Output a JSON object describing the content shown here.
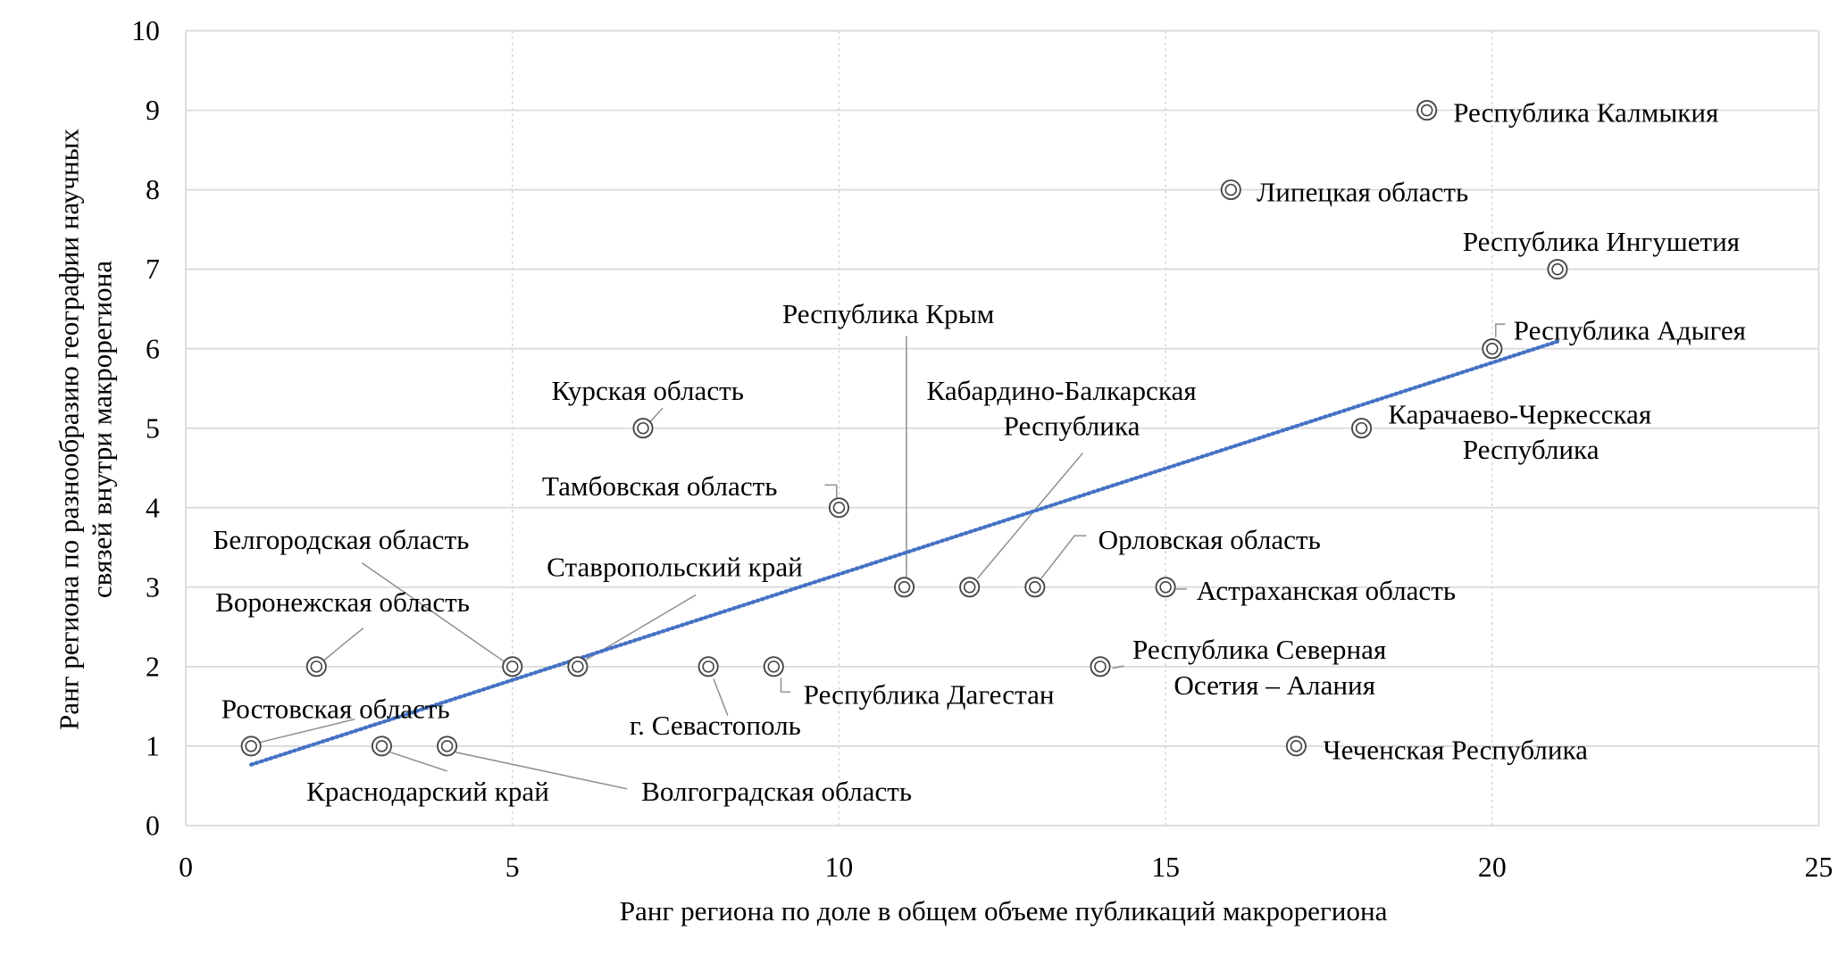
{
  "chart_data": {
    "type": "scatter",
    "title": "",
    "xlabel": "Ранг региона по доле в общем объеме публикаций макрорегиона",
    "ylabel_lines": [
      "Ранг региона по разнообразию географии научных",
      "связей внутри макрорегиона"
    ],
    "xlim": [
      0,
      25
    ],
    "ylim": [
      0,
      10
    ],
    "xticks": [
      "0",
      "5",
      "10",
      "15",
      "20",
      "25"
    ],
    "yticks": [
      "0",
      "1",
      "2",
      "3",
      "4",
      "5",
      "6",
      "7",
      "8",
      "9",
      "10"
    ],
    "grid": true,
    "trendline": "linear",
    "colors": {
      "trendline": "#4472c4",
      "marker": "#444444",
      "grid": "#d9d9d9"
    },
    "points": [
      {
        "x": 1,
        "y": 1,
        "label": [
          "Ростовская область"
        ]
      },
      {
        "x": 2,
        "y": 2,
        "label": [
          "Воронежская область"
        ]
      },
      {
        "x": 3,
        "y": 1,
        "label": [
          "Краснодарский край"
        ]
      },
      {
        "x": 4,
        "y": 1,
        "label": [
          "Волгоградская область"
        ]
      },
      {
        "x": 5,
        "y": 2,
        "label": [
          "Белгородская область"
        ]
      },
      {
        "x": 6,
        "y": 2,
        "label": [
          "Ставропольский край"
        ]
      },
      {
        "x": 7,
        "y": 5,
        "label": [
          "Курская область"
        ]
      },
      {
        "x": 8,
        "y": 2,
        "label": [
          "г. Севастополь"
        ]
      },
      {
        "x": 9,
        "y": 2,
        "label": [
          "Республика Дагестан"
        ]
      },
      {
        "x": 10,
        "y": 4,
        "label": [
          "Тамбовская область"
        ]
      },
      {
        "x": 11,
        "y": 3,
        "label": [
          "Республика Крым"
        ]
      },
      {
        "x": 12,
        "y": 3,
        "label": [
          "Кабардино-Балкарская",
          "Республика"
        ]
      },
      {
        "x": 13,
        "y": 3,
        "label": [
          "Орловская область"
        ]
      },
      {
        "x": 14,
        "y": 2,
        "label": [
          "Республика Северная",
          "Осетия – Алания"
        ]
      },
      {
        "x": 15,
        "y": 3,
        "label": [
          "Астраханская область"
        ]
      },
      {
        "x": 16,
        "y": 8,
        "label": [
          "Липецкая область"
        ]
      },
      {
        "x": 17,
        "y": 1,
        "label": [
          "Чеченская Республика"
        ]
      },
      {
        "x": 18,
        "y": 5,
        "label": [
          "Карачаево-Черкесская",
          "Республика"
        ]
      },
      {
        "x": 19,
        "y": 9,
        "label": [
          "Республика Калмыкия"
        ]
      },
      {
        "x": 20,
        "y": 6,
        "label": [
          "Республика Адыгея"
        ]
      },
      {
        "x": 21,
        "y": 7,
        "label": [
          "Республика Ингушетия"
        ]
      }
    ]
  }
}
